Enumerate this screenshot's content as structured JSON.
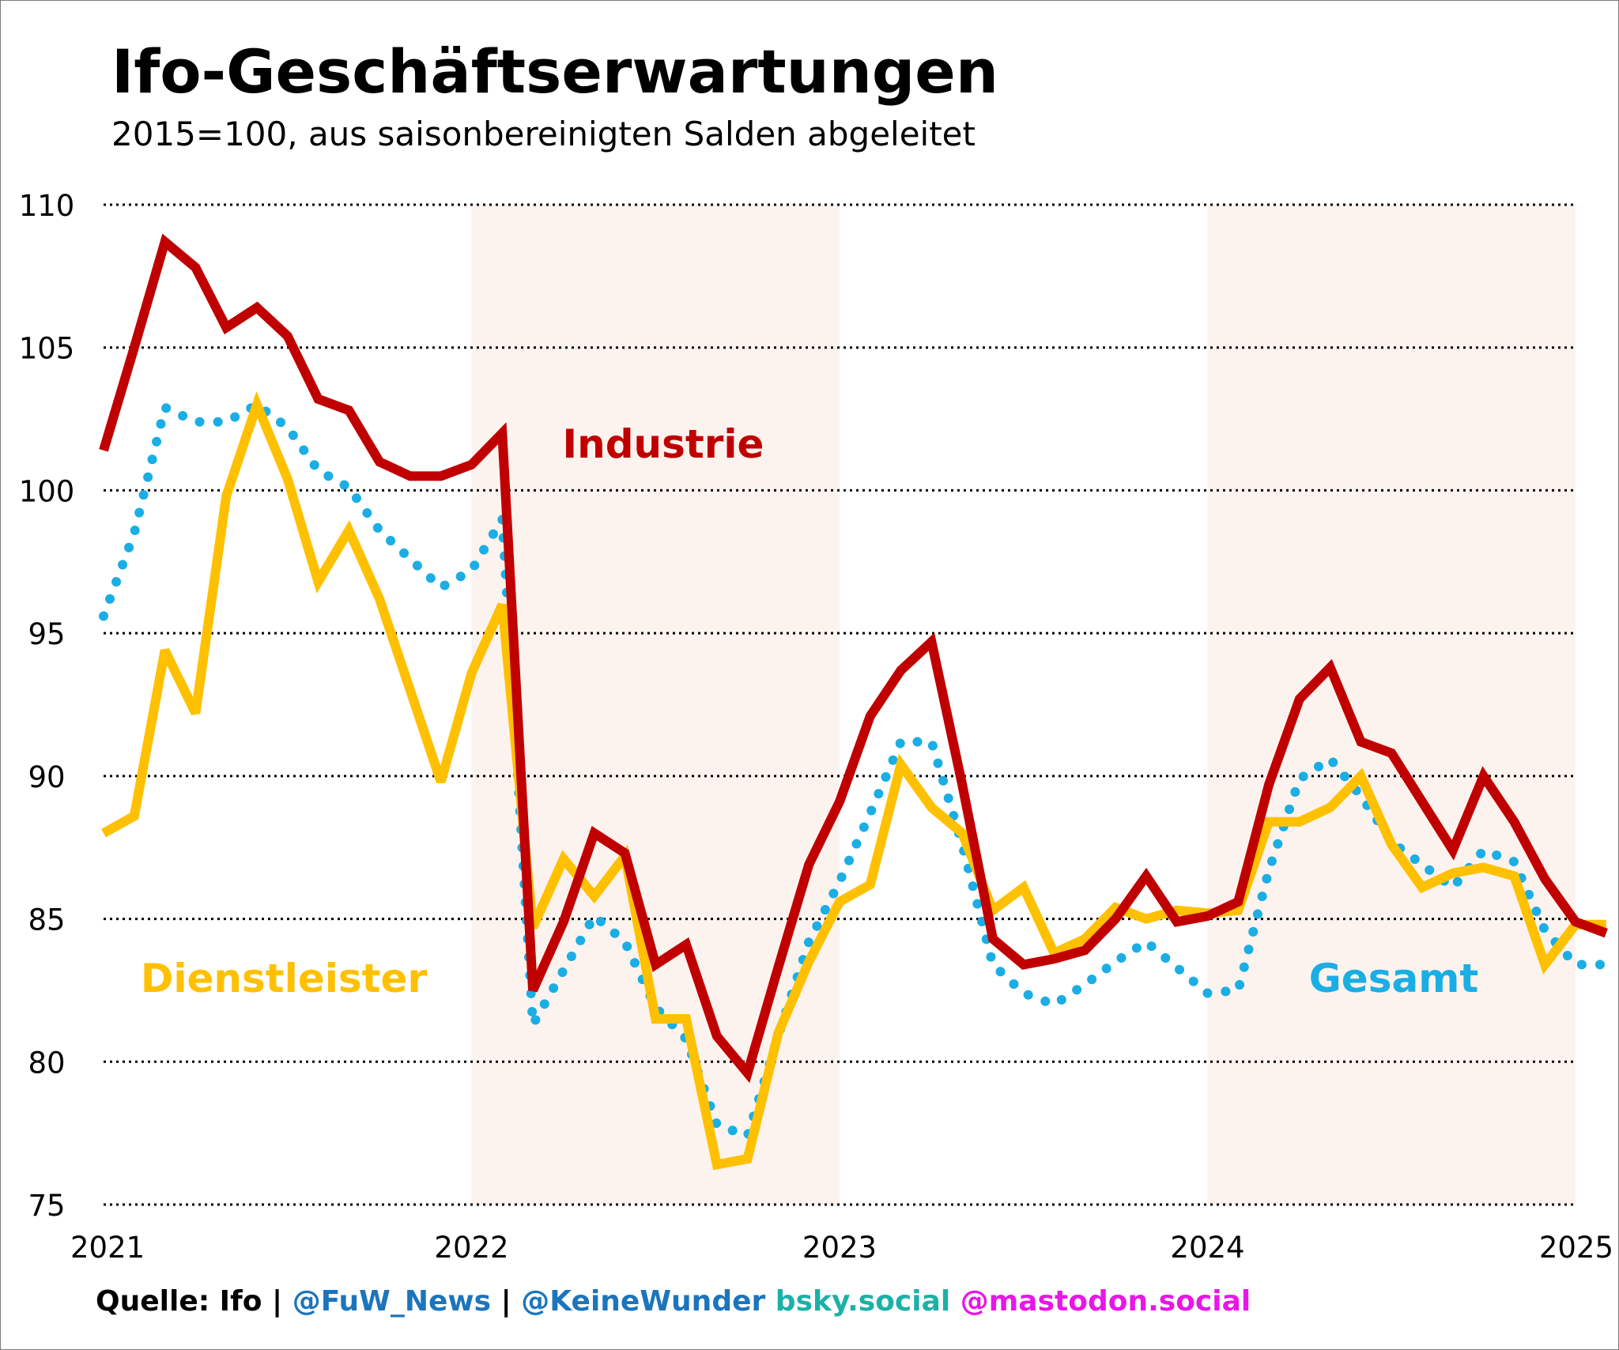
{
  "header": {
    "title": "Ifo-Geschäftserwartungen",
    "subtitle": "2015=100, aus saisonbereinigten Salden abgeleitet"
  },
  "footer": {
    "source": "Quelle: Ifo",
    "sep1": " | ",
    "handle1": "@FuW_News",
    "sep2": " | ",
    "handle2": "@KeineWunder",
    "bsky": " bsky.social",
    "mastodon": " @mastodon.social"
  },
  "colors": {
    "industrie": "#C00000",
    "dienstleister": "#FFC000",
    "gesamt": "#1AAEE5",
    "shade": "#FCF3EE",
    "handle": "#1C75BC",
    "bsky": "#1BB1A8",
    "mastodon": "#E816E6"
  },
  "chart_data": {
    "type": "line",
    "title": "Ifo-Geschäftserwartungen",
    "subtitle": "2015=100, aus saisonbereinigten Salden abgeleitet",
    "xlabel": "",
    "ylabel": "",
    "xlim": [
      2021,
      2025
    ],
    "ylim": [
      75,
      110
    ],
    "x_ticks": [
      "2021",
      "2022",
      "2023",
      "2024",
      "2025"
    ],
    "y_ticks": [
      75,
      80,
      85,
      90,
      95,
      100,
      105,
      110
    ],
    "grid": "horizontal dotted",
    "shaded_years": [
      2022,
      2024
    ],
    "x": [
      "2021-01",
      "2021-02",
      "2021-03",
      "2021-04",
      "2021-05",
      "2021-06",
      "2021-07",
      "2021-08",
      "2021-09",
      "2021-10",
      "2021-11",
      "2021-12",
      "2022-01",
      "2022-02",
      "2022-03",
      "2022-04",
      "2022-05",
      "2022-06",
      "2022-07",
      "2022-08",
      "2022-09",
      "2022-10",
      "2022-11",
      "2022-12",
      "2023-01",
      "2023-02",
      "2023-03",
      "2023-04",
      "2023-05",
      "2023-06",
      "2023-07",
      "2023-08",
      "2023-09",
      "2023-10",
      "2023-11",
      "2023-12",
      "2024-01",
      "2024-02",
      "2024-03",
      "2024-04",
      "2024-05",
      "2024-06",
      "2024-07",
      "2024-08",
      "2024-09",
      "2024-10",
      "2024-11",
      "2024-12",
      "2025-01",
      "2025-02"
    ],
    "series": [
      {
        "name": "Industrie",
        "style": "solid",
        "values": [
          101.4,
          105.0,
          108.7,
          107.8,
          105.7,
          106.4,
          105.4,
          103.2,
          102.8,
          101.0,
          100.5,
          100.5,
          100.9,
          102.0,
          82.5,
          84.9,
          88.0,
          87.3,
          83.4,
          84.1,
          80.9,
          79.6,
          83.3,
          86.9,
          89.1,
          92.1,
          93.7,
          94.7,
          89.7,
          84.3,
          83.4,
          83.6,
          83.9,
          85.0,
          86.5,
          84.9,
          85.1,
          85.6,
          89.7,
          92.7,
          93.8,
          91.2,
          90.8,
          89.1,
          87.4,
          90.0,
          88.4,
          86.4,
          84.9,
          84.5
        ]
      },
      {
        "name": "Dienstleister",
        "style": "solid",
        "values": [
          88.0,
          88.6,
          94.4,
          92.2,
          99.8,
          103.0,
          100.4,
          96.8,
          98.6,
          96.2,
          93.0,
          89.8,
          93.6,
          96.0,
          84.7,
          87.1,
          85.8,
          87.2,
          81.5,
          81.5,
          76.4,
          76.6,
          81.0,
          83.5,
          85.6,
          86.2,
          90.4,
          88.9,
          88.0,
          85.3,
          86.1,
          83.8,
          84.3,
          85.4,
          85.0,
          85.3,
          85.2,
          85.3,
          88.4,
          88.4,
          88.9,
          90.0,
          87.6,
          86.1,
          86.6,
          86.8,
          86.5,
          83.4,
          84.8,
          84.8
        ]
      },
      {
        "name": "Gesamt",
        "style": "dotted",
        "values": [
          95.6,
          98.5,
          102.9,
          102.4,
          102.4,
          103.0,
          102.2,
          100.7,
          100.1,
          98.6,
          97.6,
          96.6,
          97.2,
          99.0,
          81.3,
          83.2,
          85.1,
          84.2,
          81.9,
          80.8,
          77.8,
          77.4,
          80.9,
          84.2,
          86.3,
          88.7,
          91.2,
          91.2,
          87.6,
          83.4,
          82.4,
          82.0,
          82.7,
          83.5,
          84.2,
          83.3,
          82.4,
          82.5,
          86.7,
          89.9,
          90.6,
          89.3,
          87.7,
          86.9,
          86.1,
          87.4,
          87.0,
          84.6,
          83.4,
          83.4
        ]
      }
    ],
    "annotations": [
      {
        "text": "Industrie",
        "series": "Industrie"
      },
      {
        "text": "Dienstleister",
        "series": "Dienstleister"
      },
      {
        "text": "Gesamt",
        "series": "Gesamt"
      }
    ]
  }
}
